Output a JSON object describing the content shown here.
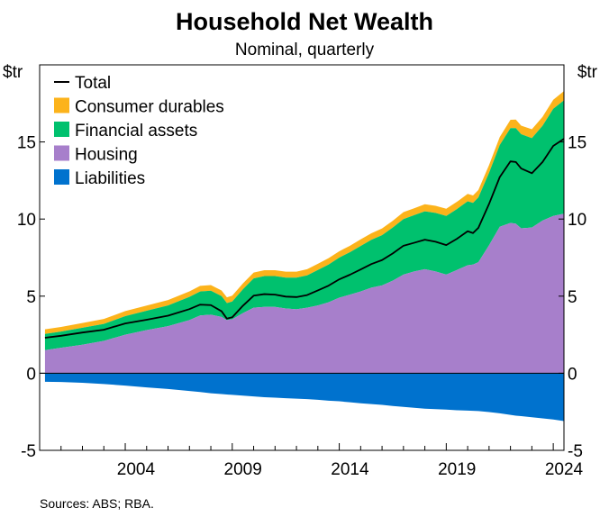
{
  "chart_data": {
    "type": "area",
    "title": "Household Net Wealth",
    "subtitle": "Nominal, quarterly",
    "y_unit_left": "$tr",
    "y_unit_right": "$tr",
    "ylim": [
      -5,
      20
    ],
    "yticks": [
      -5,
      0,
      5,
      10,
      15
    ],
    "xlim": [
      2000.0,
      2024.5
    ],
    "xticks": [
      2004,
      2009,
      2014,
      2019,
      2024
    ],
    "source": "Sources: ABS; RBA.",
    "x": [
      2000.25,
      2001.0,
      2002.0,
      2003.0,
      2004.0,
      2005.0,
      2006.0,
      2007.0,
      2007.5,
      2008.0,
      2008.5,
      2008.75,
      2009.0,
      2009.5,
      2010.0,
      2010.5,
      2011.0,
      2011.5,
      2012.0,
      2012.5,
      2013.0,
      2013.5,
      2014.0,
      2014.5,
      2015.0,
      2015.5,
      2016.0,
      2016.5,
      2017.0,
      2017.5,
      2018.0,
      2018.5,
      2019.0,
      2019.5,
      2020.0,
      2020.25,
      2020.5,
      2021.0,
      2021.5,
      2022.0,
      2022.25,
      2022.5,
      2023.0,
      2023.5,
      2024.0,
      2024.5
    ],
    "series": [
      {
        "name": "Liabilities",
        "color": "#0072ce",
        "stacked": false,
        "values": [
          -0.55,
          -0.57,
          -0.62,
          -0.7,
          -0.8,
          -0.92,
          -1.02,
          -1.15,
          -1.22,
          -1.3,
          -1.35,
          -1.38,
          -1.4,
          -1.45,
          -1.5,
          -1.55,
          -1.58,
          -1.62,
          -1.65,
          -1.68,
          -1.72,
          -1.78,
          -1.82,
          -1.88,
          -1.95,
          -2.0,
          -2.05,
          -2.12,
          -2.18,
          -2.24,
          -2.3,
          -2.33,
          -2.36,
          -2.4,
          -2.42,
          -2.44,
          -2.45,
          -2.52,
          -2.6,
          -2.7,
          -2.75,
          -2.78,
          -2.85,
          -2.93,
          -3.0,
          -3.1
        ]
      },
      {
        "name": "Housing",
        "color": "#a77fcb",
        "stacked": true,
        "values": [
          1.5,
          1.65,
          1.85,
          2.1,
          2.5,
          2.8,
          3.05,
          3.45,
          3.75,
          3.8,
          3.65,
          3.45,
          3.5,
          3.9,
          4.25,
          4.3,
          4.3,
          4.2,
          4.15,
          4.25,
          4.4,
          4.6,
          4.9,
          5.1,
          5.3,
          5.55,
          5.7,
          6.0,
          6.4,
          6.6,
          6.75,
          6.6,
          6.4,
          6.7,
          7.0,
          7.05,
          7.2,
          8.3,
          9.5,
          9.75,
          9.7,
          9.4,
          9.45,
          9.9,
          10.2,
          10.35
        ]
      },
      {
        "name": "Financial assets",
        "color": "#00c16e",
        "stacked": true,
        "values": [
          1.05,
          1.05,
          1.1,
          1.1,
          1.2,
          1.25,
          1.35,
          1.5,
          1.55,
          1.55,
          1.35,
          1.1,
          1.15,
          1.55,
          1.9,
          2.0,
          2.0,
          2.0,
          2.05,
          2.1,
          2.3,
          2.45,
          2.6,
          2.75,
          2.95,
          3.1,
          3.25,
          3.45,
          3.6,
          3.65,
          3.75,
          3.8,
          3.8,
          3.95,
          4.15,
          4.0,
          4.2,
          4.7,
          5.3,
          6.15,
          6.2,
          6.1,
          5.8,
          6.15,
          6.95,
          7.35
        ]
      },
      {
        "name": "Consumer durables",
        "color": "#fcb31b",
        "stacked": true,
        "values": [
          0.3,
          0.3,
          0.31,
          0.32,
          0.33,
          0.34,
          0.35,
          0.36,
          0.37,
          0.37,
          0.37,
          0.37,
          0.38,
          0.38,
          0.38,
          0.38,
          0.38,
          0.39,
          0.39,
          0.4,
          0.4,
          0.41,
          0.41,
          0.42,
          0.43,
          0.43,
          0.44,
          0.44,
          0.45,
          0.45,
          0.46,
          0.46,
          0.47,
          0.47,
          0.48,
          0.48,
          0.48,
          0.5,
          0.52,
          0.54,
          0.55,
          0.56,
          0.57,
          0.58,
          0.59,
          0.6
        ]
      },
      {
        "name": "Total",
        "color": "#000000",
        "type": "line",
        "values": [
          2.3,
          2.43,
          2.64,
          2.82,
          3.23,
          3.47,
          3.73,
          4.16,
          4.45,
          4.42,
          4.02,
          3.54,
          3.63,
          4.38,
          5.03,
          5.13,
          5.1,
          4.97,
          4.94,
          5.07,
          5.37,
          5.68,
          6.09,
          6.39,
          6.73,
          7.08,
          7.34,
          7.77,
          8.27,
          8.46,
          8.66,
          8.53,
          8.31,
          8.72,
          9.21,
          9.09,
          9.43,
          10.98,
          12.72,
          13.74,
          13.7,
          13.28,
          12.97,
          13.7,
          14.74,
          15.2
        ]
      }
    ],
    "legend": [
      "Total",
      "Consumer durables",
      "Financial assets",
      "Housing",
      "Liabilities"
    ]
  }
}
